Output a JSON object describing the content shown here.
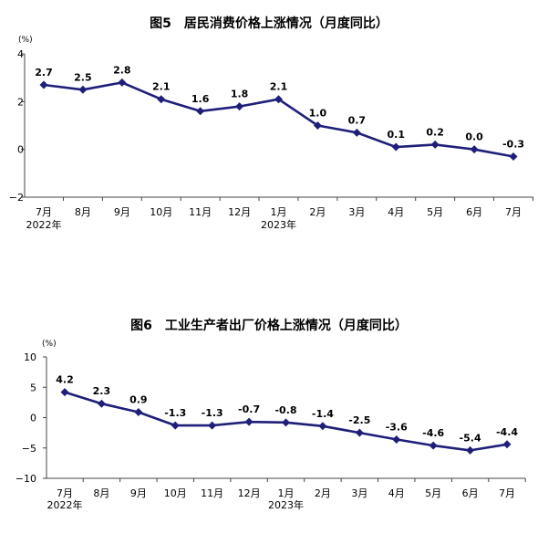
{
  "charts": [
    {
      "title": "图5　居民消费价格上涨情况（月度同比）",
      "unit": "(%)",
      "color": "#1f1f7a",
      "ylim": [
        -2,
        4
      ],
      "y_ticks": [
        "4",
        "2",
        "0",
        "−2"
      ],
      "categories": [
        "7月",
        "8月",
        "9月",
        "10月",
        "11月",
        "12月",
        "1月",
        "2月",
        "3月",
        "4月",
        "5月",
        "6月",
        "7月"
      ],
      "year_labels": [
        {
          "index": 0,
          "text": "2022年"
        },
        {
          "index": 6,
          "text": "2023年"
        }
      ],
      "values": [
        2.7,
        2.5,
        2.8,
        2.1,
        1.6,
        1.8,
        2.1,
        1.0,
        0.7,
        0.1,
        0.2,
        0.0,
        -0.3
      ],
      "value_labels": [
        "2.7",
        "2.5",
        "2.8",
        "2.1",
        "1.6",
        "1.8",
        "2.1",
        "1.0",
        "0.7",
        "0.1",
        "0.2",
        "0.0",
        "-0.3"
      ]
    },
    {
      "title": "图6　工业生产者出厂价格上涨情况（月度同比）",
      "unit": "(%)",
      "color": "#1f1f7a",
      "ylim": [
        -10,
        10
      ],
      "y_ticks": [
        "10",
        "5",
        "0",
        "−5",
        "−10"
      ],
      "categories": [
        "7月",
        "8月",
        "9月",
        "10月",
        "11月",
        "12月",
        "1月",
        "2月",
        "3月",
        "4月",
        "5月",
        "6月",
        "7月"
      ],
      "year_labels": [
        {
          "index": 0,
          "text": "2022年"
        },
        {
          "index": 6,
          "text": "2023年"
        }
      ],
      "values": [
        4.2,
        2.3,
        0.9,
        -1.3,
        -1.3,
        -0.7,
        -0.8,
        -1.4,
        -2.5,
        -3.6,
        -4.6,
        -5.4,
        -4.4
      ],
      "value_labels": [
        "4.2",
        "2.3",
        "0.9",
        "-1.3",
        "-1.3",
        "-0.7",
        "-0.8",
        "-1.4",
        "-2.5",
        "-3.6",
        "-4.6",
        "-5.4",
        "-4.4"
      ]
    }
  ],
  "chart_data": [
    {
      "type": "line",
      "title": "图5　居民消费价格上涨情况（月度同比）",
      "ylabel": "(%)",
      "categories": [
        "2022-07",
        "2022-08",
        "2022-09",
        "2022-10",
        "2022-11",
        "2022-12",
        "2023-01",
        "2023-02",
        "2023-03",
        "2023-04",
        "2023-05",
        "2023-06",
        "2023-07"
      ],
      "values": [
        2.7,
        2.5,
        2.8,
        2.1,
        1.6,
        1.8,
        2.1,
        1.0,
        0.7,
        0.1,
        0.2,
        0.0,
        -0.3
      ],
      "ylim": [
        -2,
        4
      ],
      "grid": false
    },
    {
      "type": "line",
      "title": "图6　工业生产者出厂价格上涨情况（月度同比）",
      "ylabel": "(%)",
      "categories": [
        "2022-07",
        "2022-08",
        "2022-09",
        "2022-10",
        "2022-11",
        "2022-12",
        "2023-01",
        "2023-02",
        "2023-03",
        "2023-04",
        "2023-05",
        "2023-06",
        "2023-07"
      ],
      "values": [
        4.2,
        2.3,
        0.9,
        -1.3,
        -1.3,
        -0.7,
        -0.8,
        -1.4,
        -2.5,
        -3.6,
        -4.6,
        -5.4,
        -4.4
      ],
      "ylim": [
        -10,
        10
      ],
      "grid": false
    }
  ]
}
